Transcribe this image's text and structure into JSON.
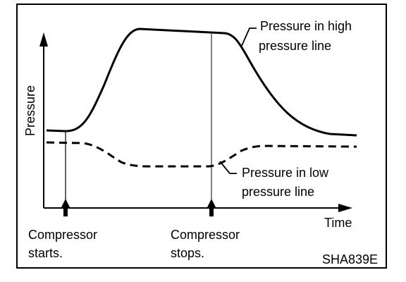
{
  "figure": {
    "y_axis_label": "Pressure",
    "x_axis_label": "Time",
    "high_line_label": [
      "Pressure in high",
      "pressure line"
    ],
    "low_line_label": [
      "Pressure in low",
      "pressure line"
    ],
    "event_start_label": [
      "Compressor",
      "starts."
    ],
    "event_stop_label": [
      "Compressor",
      "stops."
    ],
    "figure_code": "SHA839E",
    "high_line_style": "solid",
    "low_line_style": "dashed",
    "line_color": "#000000"
  }
}
